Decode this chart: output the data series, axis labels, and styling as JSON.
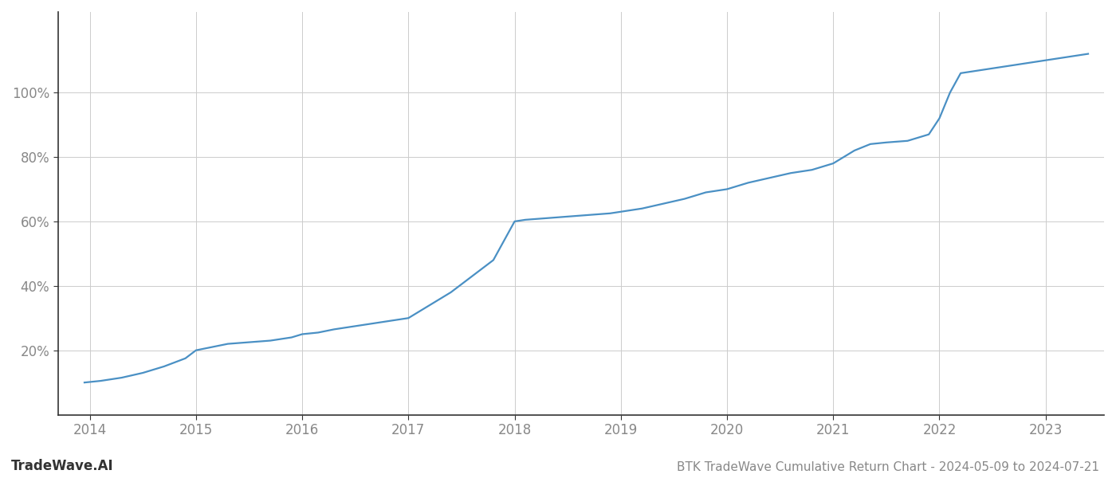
{
  "title": "BTK TradeWave Cumulative Return Chart - 2024-05-09 to 2024-07-21",
  "watermark": "TradeWave.AI",
  "line_color": "#4a90c4",
  "background_color": "#ffffff",
  "grid_color": "#cccccc",
  "x_years": [
    2014,
    2015,
    2016,
    2017,
    2018,
    2019,
    2020,
    2021,
    2022,
    2023
  ],
  "data_points": [
    [
      2013.95,
      10
    ],
    [
      2014.1,
      10.5
    ],
    [
      2014.3,
      11.5
    ],
    [
      2014.5,
      13
    ],
    [
      2014.7,
      15
    ],
    [
      2014.9,
      17.5
    ],
    [
      2015.0,
      20
    ],
    [
      2015.15,
      21
    ],
    [
      2015.3,
      22
    ],
    [
      2015.5,
      22.5
    ],
    [
      2015.7,
      23
    ],
    [
      2015.9,
      24
    ],
    [
      2016.0,
      25
    ],
    [
      2016.15,
      25.5
    ],
    [
      2016.3,
      26.5
    ],
    [
      2016.5,
      27.5
    ],
    [
      2016.7,
      28.5
    ],
    [
      2016.9,
      29.5
    ],
    [
      2017.0,
      30
    ],
    [
      2017.2,
      34
    ],
    [
      2017.4,
      38
    ],
    [
      2017.6,
      43
    ],
    [
      2017.8,
      48
    ],
    [
      2017.95,
      57
    ],
    [
      2018.0,
      60
    ],
    [
      2018.1,
      60.5
    ],
    [
      2018.3,
      61
    ],
    [
      2018.5,
      61.5
    ],
    [
      2018.7,
      62
    ],
    [
      2018.9,
      62.5
    ],
    [
      2019.0,
      63
    ],
    [
      2019.2,
      64
    ],
    [
      2019.4,
      65.5
    ],
    [
      2019.6,
      67
    ],
    [
      2019.8,
      69
    ],
    [
      2020.0,
      70
    ],
    [
      2020.2,
      72
    ],
    [
      2020.4,
      73.5
    ],
    [
      2020.6,
      75
    ],
    [
      2020.8,
      76
    ],
    [
      2021.0,
      78
    ],
    [
      2021.2,
      82
    ],
    [
      2021.35,
      84
    ],
    [
      2021.5,
      84.5
    ],
    [
      2021.7,
      85
    ],
    [
      2021.9,
      87
    ],
    [
      2022.0,
      92
    ],
    [
      2022.1,
      100
    ],
    [
      2022.2,
      106
    ],
    [
      2022.4,
      107
    ],
    [
      2022.6,
      108
    ],
    [
      2022.8,
      109
    ],
    [
      2023.0,
      110
    ],
    [
      2023.2,
      111
    ],
    [
      2023.4,
      112
    ]
  ],
  "ylim": [
    0,
    125
  ],
  "yticks": [
    20,
    40,
    60,
    80,
    100
  ],
  "ytick_labels": [
    "20%",
    "40%",
    "60%",
    "80%",
    "100%"
  ],
  "xlim": [
    2013.7,
    2023.55
  ],
  "title_fontsize": 11,
  "watermark_fontsize": 12,
  "tick_fontsize": 12,
  "line_width": 1.6,
  "spine_color": "#333333",
  "tick_color": "#888888"
}
